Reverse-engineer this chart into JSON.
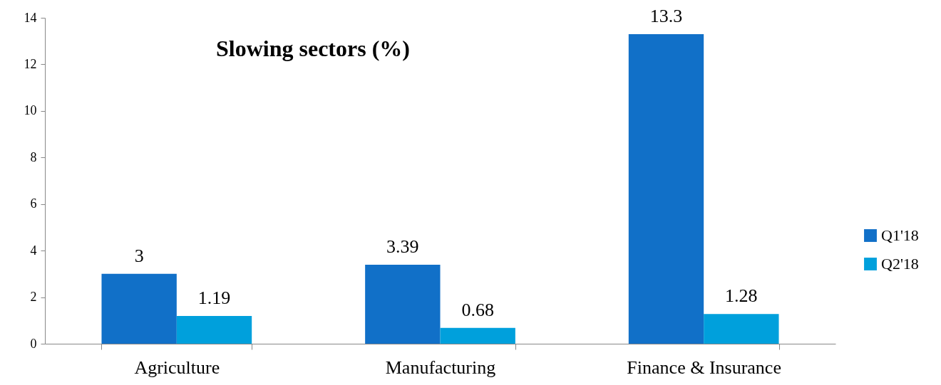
{
  "chart_data": {
    "type": "bar",
    "title": "Slowing sectors (%)",
    "categories": [
      "Agriculture",
      "Manufacturing",
      "Finance & Insurance"
    ],
    "series": [
      {
        "name": "Q1'18",
        "color": "#1170c8",
        "values": [
          3,
          3.39,
          13.3
        ]
      },
      {
        "name": "Q2'18",
        "color": "#00a0dc",
        "values": [
          1.19,
          0.68,
          1.28
        ]
      }
    ],
    "ylim": [
      0,
      14
    ],
    "yticks": [
      0,
      2,
      4,
      6,
      8,
      10,
      12,
      14
    ],
    "grid": false,
    "legend": "right",
    "data_labels": true
  }
}
